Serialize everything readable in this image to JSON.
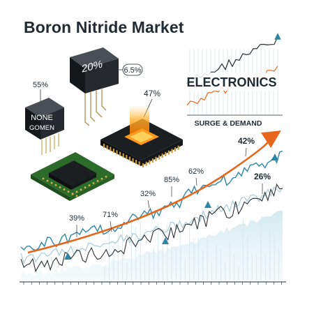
{
  "title": "Boron Nitride Market",
  "chips": {
    "left_chip_lines": [
      "NONE",
      "GOMEN"
    ],
    "left_chip_percent": "55%",
    "top_chip_label": "20%",
    "top_chip_callout": "6.5%",
    "cpu_percent": "47%"
  },
  "inset_chart": {
    "banner": "ELECTRONICS",
    "subtitle": "SURGE & DEMAND"
  },
  "chart_data": {
    "type": "line",
    "title": "",
    "xlabel": "",
    "ylabel": "",
    "trend_labels": [
      "39%",
      "71%",
      "32%",
      "85%",
      "62%",
      "42%",
      "26%"
    ],
    "colors": {
      "trend": "#e8661c",
      "teal": "#2e86a6",
      "dark": "#2b2f33",
      "light": "#9fc8d6",
      "area": "#cfe6ec"
    }
  }
}
